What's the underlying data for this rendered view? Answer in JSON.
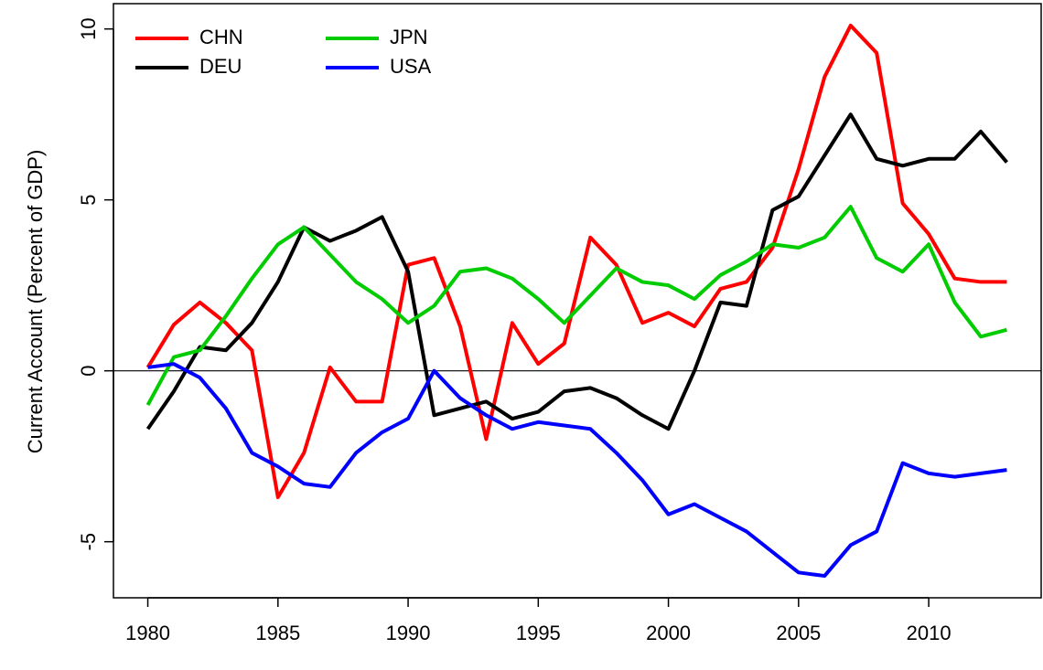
{
  "chart_data": {
    "type": "line",
    "y_label": "Current Account (Percent of GDP)",
    "x": [
      1980,
      1981,
      1982,
      1983,
      1984,
      1985,
      1986,
      1987,
      1988,
      1989,
      1990,
      1991,
      1992,
      1993,
      1994,
      1995,
      1996,
      1997,
      1998,
      1999,
      2000,
      2001,
      2002,
      2003,
      2004,
      2005,
      2006,
      2007,
      2008,
      2009,
      2010,
      2011,
      2012,
      2013
    ],
    "series": [
      {
        "name": "CHN",
        "color": "#ff0000",
        "values": [
          0.1,
          1.35,
          2.0,
          1.4,
          0.6,
          -3.7,
          -2.4,
          0.1,
          -0.9,
          -0.9,
          3.1,
          3.3,
          1.3,
          -2.0,
          1.4,
          0.2,
          0.8,
          3.9,
          3.1,
          1.4,
          1.7,
          1.3,
          2.4,
          2.6,
          3.6,
          5.9,
          8.6,
          10.1,
          9.3,
          4.9,
          4.0,
          2.7,
          2.6,
          2.6
        ]
      },
      {
        "name": "DEU",
        "color": "#000000",
        "values": [
          -1.7,
          -0.6,
          0.7,
          0.6,
          1.4,
          2.6,
          4.2,
          3.8,
          4.1,
          4.5,
          2.9,
          -1.3,
          -1.1,
          -0.9,
          -1.4,
          -1.2,
          -0.6,
          -0.5,
          -0.8,
          -1.3,
          -1.7,
          0.0,
          2.0,
          1.9,
          4.7,
          5.1,
          6.3,
          7.5,
          6.2,
          6.0,
          6.2,
          6.2,
          7.0,
          6.1
        ]
      },
      {
        "name": "JPN",
        "color": "#00cc00",
        "values": [
          -1.0,
          0.4,
          0.6,
          1.6,
          2.7,
          3.7,
          4.2,
          3.4,
          2.6,
          2.1,
          1.4,
          1.9,
          2.9,
          3.0,
          2.7,
          2.1,
          1.4,
          2.2,
          3.0,
          2.6,
          2.5,
          2.1,
          2.8,
          3.2,
          3.7,
          3.6,
          3.9,
          4.8,
          3.3,
          2.9,
          3.7,
          2.0,
          1.0,
          1.2
        ]
      },
      {
        "name": "USA",
        "color": "#0000ff",
        "values": [
          0.1,
          0.2,
          -0.2,
          -1.1,
          -2.4,
          -2.8,
          -3.3,
          -3.4,
          -2.4,
          -1.8,
          -1.4,
          0.0,
          -0.8,
          -1.3,
          -1.7,
          -1.5,
          -1.6,
          -1.7,
          -2.4,
          -3.2,
          -4.2,
          -3.9,
          -4.3,
          -4.7,
          -5.3,
          -5.9,
          -6.0,
          -5.1,
          -4.7,
          -2.7,
          -3.0,
          -3.1,
          -3.0,
          -2.9
        ]
      }
    ],
    "xlim": [
      1978.68,
      2014.32
    ],
    "xticks": [
      1980,
      1985,
      1990,
      1995,
      2000,
      2005,
      2010
    ],
    "ylim": [
      -6.64,
      10.74
    ],
    "yticks": [
      -5,
      0,
      5,
      10
    ],
    "hline": 0,
    "legend": "top-left",
    "legend_columns": 2
  }
}
